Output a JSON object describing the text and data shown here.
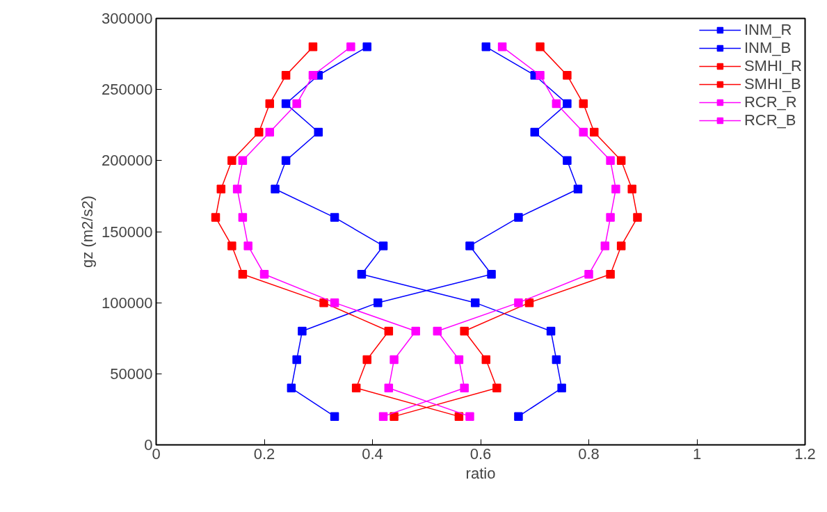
{
  "chart_data": {
    "type": "line",
    "xlabel": "ratio",
    "ylabel": "gz (m2/s2)",
    "xlim": [
      0,
      1.2
    ],
    "xticks": [
      0,
      0.2,
      0.4,
      0.6,
      0.8,
      1,
      1.2
    ],
    "ylim": [
      0,
      300000
    ],
    "yticks": [
      0,
      50000,
      100000,
      150000,
      200000,
      250000,
      300000
    ],
    "grid": false,
    "legend": "top right",
    "marker": "square",
    "line_style": "solid",
    "series": [
      {
        "name": "INM_R",
        "color": "#0000ff",
        "x": [
          0.33,
          0.25,
          0.26,
          0.27,
          0.41,
          0.62,
          0.58,
          0.67,
          0.78,
          0.76,
          0.7,
          0.76,
          0.7,
          0.61
        ],
        "values": [
          20000,
          40000,
          60000,
          80000,
          100000,
          120000,
          140000,
          160000,
          180000,
          200000,
          220000,
          240000,
          260000,
          280000
        ]
      },
      {
        "name": "INM_B",
        "color": "#0000ff",
        "x": [
          0.67,
          0.75,
          0.74,
          0.73,
          0.59,
          0.38,
          0.42,
          0.33,
          0.22,
          0.24,
          0.3,
          0.24,
          0.3,
          0.39
        ],
        "values": [
          20000,
          40000,
          60000,
          80000,
          100000,
          120000,
          140000,
          160000,
          180000,
          200000,
          220000,
          240000,
          260000,
          280000
        ]
      },
      {
        "name": "SMHI_R",
        "color": "#ff0000",
        "x": [
          0.44,
          0.63,
          0.61,
          0.57,
          0.69,
          0.84,
          0.86,
          0.89,
          0.88,
          0.86,
          0.81,
          0.79,
          0.76,
          0.71
        ],
        "values": [
          20000,
          40000,
          60000,
          80000,
          100000,
          120000,
          140000,
          160000,
          180000,
          200000,
          220000,
          240000,
          260000,
          280000
        ]
      },
      {
        "name": "SMHI_B",
        "color": "#ff0000",
        "x": [
          0.56,
          0.37,
          0.39,
          0.43,
          0.31,
          0.16,
          0.14,
          0.11,
          0.12,
          0.14,
          0.19,
          0.21,
          0.24,
          0.29
        ],
        "values": [
          20000,
          40000,
          60000,
          80000,
          100000,
          120000,
          140000,
          160000,
          180000,
          200000,
          220000,
          240000,
          260000,
          280000
        ]
      },
      {
        "name": "RCR_R",
        "color": "#ff00ff",
        "x": [
          0.42,
          0.57,
          0.56,
          0.52,
          0.67,
          0.8,
          0.83,
          0.84,
          0.85,
          0.84,
          0.79,
          0.74,
          0.71,
          0.64
        ],
        "values": [
          20000,
          40000,
          60000,
          80000,
          100000,
          120000,
          140000,
          160000,
          180000,
          200000,
          220000,
          240000,
          260000,
          280000
        ]
      },
      {
        "name": "RCR_B",
        "color": "#ff00ff",
        "x": [
          0.58,
          0.43,
          0.44,
          0.48,
          0.33,
          0.2,
          0.17,
          0.16,
          0.15,
          0.16,
          0.21,
          0.26,
          0.29,
          0.36
        ],
        "values": [
          20000,
          40000,
          60000,
          80000,
          100000,
          120000,
          140000,
          160000,
          180000,
          200000,
          220000,
          240000,
          260000,
          280000
        ]
      }
    ]
  }
}
